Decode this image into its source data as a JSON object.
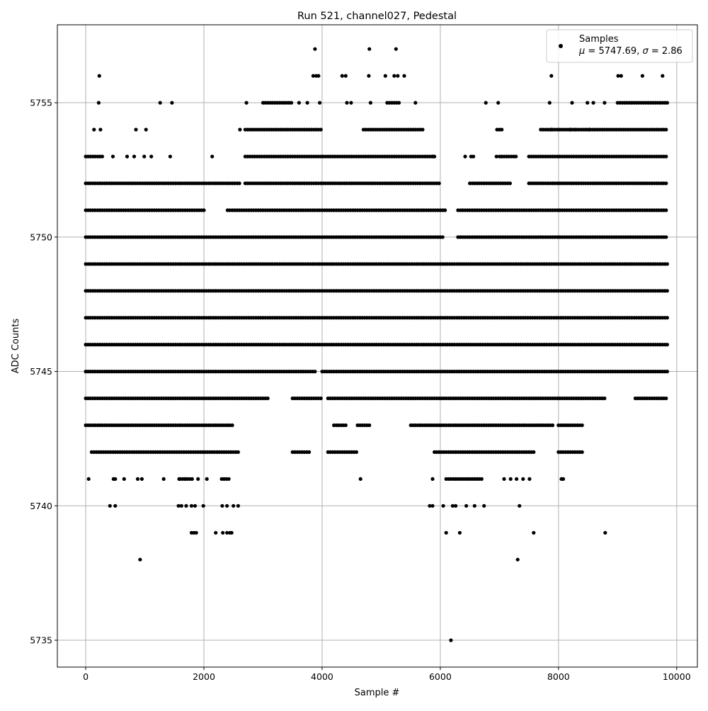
{
  "chart_data": {
    "type": "scatter",
    "title": "Run 521, channel027, Pedestal",
    "xlabel": "Sample #",
    "ylabel": "ADC Counts",
    "xlim": [
      -480,
      10350
    ],
    "ylim": [
      5734,
      5757.9
    ],
    "x_ticks": [
      0,
      2000,
      4000,
      6000,
      8000,
      10000
    ],
    "y_ticks": [
      5735,
      5740,
      5745,
      5750,
      5755
    ],
    "grid": true,
    "marker_color": "#000000",
    "legend": {
      "placement": "top-right",
      "series_label": "Samples",
      "stats_mu": "μ",
      "stats_mu_value": " = 5747.69, ",
      "stats_sigma": "σ",
      "stats_sigma_value": " = 2.86"
    },
    "series": [
      {
        "name": "Samples",
        "level_spans": [
          {
            "y": 5749,
            "spans": [
              [
                0,
                9840
              ]
            ]
          },
          {
            "y": 5748,
            "spans": [
              [
                0,
                9840
              ]
            ]
          },
          {
            "y": 5747,
            "spans": [
              [
                0,
                9840
              ]
            ]
          },
          {
            "y": 5746,
            "spans": [
              [
                0,
                9840
              ]
            ]
          },
          {
            "y": 5750,
            "spans": [
              [
                0,
                6050
              ],
              [
                6300,
                9840
              ]
            ]
          },
          {
            "y": 5745,
            "spans": [
              [
                0,
                3900
              ],
              [
                4000,
                9840
              ]
            ]
          },
          {
            "y": 5744,
            "spans": [
              [
                0,
                3100
              ],
              [
                3500,
                4000
              ],
              [
                4100,
                8800
              ],
              [
                9300,
                9840
              ]
            ]
          },
          {
            "y": 5751,
            "spans": [
              [
                0,
                2000
              ],
              [
                2400,
                6100
              ],
              [
                6300,
                9840
              ]
            ]
          },
          {
            "y": 5752,
            "spans": [
              [
                0,
                2600
              ],
              [
                2700,
                6000
              ],
              [
                6500,
                7200
              ],
              [
                7500,
                9840
              ]
            ]
          },
          {
            "y": 5743,
            "spans": [
              [
                0,
                2500
              ],
              [
                4200,
                4400
              ],
              [
                4600,
                4800
              ],
              [
                5500,
                7900
              ],
              [
                8000,
                8400
              ]
            ]
          },
          {
            "y": 5753,
            "spans": [
              [
                0,
                300
              ],
              [
                2700,
                5900
              ],
              [
                7000,
                7300
              ],
              [
                7500,
                9840
              ]
            ]
          },
          {
            "y": 5742,
            "spans": [
              [
                100,
                2600
              ],
              [
                3500,
                3800
              ],
              [
                4100,
                4600
              ],
              [
                5900,
                7600
              ],
              [
                8000,
                8400
              ]
            ]
          },
          {
            "y": 5754,
            "spans": [
              [
                2700,
                4000
              ],
              [
                4700,
                5700
              ],
              [
                7700,
                9840
              ]
            ]
          },
          {
            "y": 5755,
            "spans": [
              [
                3000,
                3500
              ],
              [
                5100,
                5300
              ],
              [
                9000,
                9840
              ]
            ]
          },
          {
            "y": 5741,
            "spans": [
              [
                1600,
                1800
              ],
              [
                2300,
                2450
              ],
              [
                6100,
                6700
              ]
            ]
          }
        ],
        "points": [
          [
            50,
            5741
          ],
          [
            470,
            5741
          ],
          [
            500,
            5741
          ],
          [
            650,
            5741
          ],
          [
            880,
            5741
          ],
          [
            950,
            5741
          ],
          [
            1320,
            5741
          ],
          [
            1580,
            5741
          ],
          [
            1680,
            5741
          ],
          [
            1900,
            5741
          ],
          [
            2050,
            5741
          ],
          [
            4650,
            5741
          ],
          [
            5870,
            5741
          ],
          [
            7080,
            5741
          ],
          [
            7190,
            5741
          ],
          [
            7290,
            5741
          ],
          [
            7400,
            5741
          ],
          [
            7510,
            5741
          ],
          [
            8050,
            5741
          ],
          [
            8080,
            5741
          ],
          [
            410,
            5740
          ],
          [
            500,
            5740
          ],
          [
            1570,
            5740
          ],
          [
            1620,
            5740
          ],
          [
            1700,
            5740
          ],
          [
            1790,
            5740
          ],
          [
            1850,
            5740
          ],
          [
            1990,
            5740
          ],
          [
            2310,
            5740
          ],
          [
            2390,
            5740
          ],
          [
            2500,
            5740
          ],
          [
            2580,
            5740
          ],
          [
            5820,
            5740
          ],
          [
            5870,
            5740
          ],
          [
            6050,
            5740
          ],
          [
            6210,
            5740
          ],
          [
            6260,
            5740
          ],
          [
            6440,
            5740
          ],
          [
            6580,
            5740
          ],
          [
            6740,
            5740
          ],
          [
            7340,
            5740
          ],
          [
            1790,
            5739
          ],
          [
            1830,
            5739
          ],
          [
            1870,
            5739
          ],
          [
            2200,
            5739
          ],
          [
            2320,
            5739
          ],
          [
            2390,
            5739
          ],
          [
            2440,
            5739
          ],
          [
            2470,
            5739
          ],
          [
            6100,
            5739
          ],
          [
            6330,
            5739
          ],
          [
            7580,
            5739
          ],
          [
            8790,
            5739
          ],
          [
            920,
            5738
          ],
          [
            7310,
            5738
          ],
          [
            6180,
            5735
          ],
          [
            230,
            5756
          ],
          [
            3850,
            5756
          ],
          [
            3900,
            5756
          ],
          [
            3940,
            5756
          ],
          [
            4340,
            5756
          ],
          [
            4400,
            5756
          ],
          [
            4790,
            5756
          ],
          [
            5070,
            5756
          ],
          [
            5220,
            5756
          ],
          [
            5280,
            5756
          ],
          [
            5390,
            5756
          ],
          [
            7880,
            5756
          ],
          [
            9010,
            5756
          ],
          [
            9060,
            5756
          ],
          [
            9420,
            5756
          ],
          [
            9760,
            5756
          ],
          [
            3880,
            5757
          ],
          [
            4800,
            5757
          ],
          [
            5250,
            5757
          ],
          [
            220,
            5755
          ],
          [
            1260,
            5755
          ],
          [
            1460,
            5755
          ],
          [
            2720,
            5755
          ],
          [
            3610,
            5755
          ],
          [
            3750,
            5755
          ],
          [
            3960,
            5755
          ],
          [
            4420,
            5755
          ],
          [
            4490,
            5755
          ],
          [
            4820,
            5755
          ],
          [
            5580,
            5755
          ],
          [
            6770,
            5755
          ],
          [
            6980,
            5755
          ],
          [
            7850,
            5755
          ],
          [
            8230,
            5755
          ],
          [
            8490,
            5755
          ],
          [
            8590,
            5755
          ],
          [
            8780,
            5755
          ],
          [
            140,
            5754
          ],
          [
            250,
            5754
          ],
          [
            850,
            5754
          ],
          [
            1020,
            5754
          ],
          [
            2610,
            5754
          ],
          [
            6960,
            5754
          ],
          [
            7000,
            5754
          ],
          [
            7040,
            5754
          ],
          [
            7880,
            5754
          ],
          [
            8200,
            5754
          ],
          [
            8290,
            5754
          ],
          [
            8460,
            5754
          ],
          [
            8520,
            5754
          ],
          [
            460,
            5753
          ],
          [
            700,
            5753
          ],
          [
            820,
            5753
          ],
          [
            990,
            5753
          ],
          [
            1110,
            5753
          ],
          [
            1430,
            5753
          ],
          [
            2140,
            5753
          ],
          [
            5880,
            5753
          ],
          [
            6420,
            5753
          ],
          [
            6520,
            5753
          ],
          [
            6560,
            5753
          ],
          [
            6950,
            5753
          ]
        ]
      }
    ]
  }
}
